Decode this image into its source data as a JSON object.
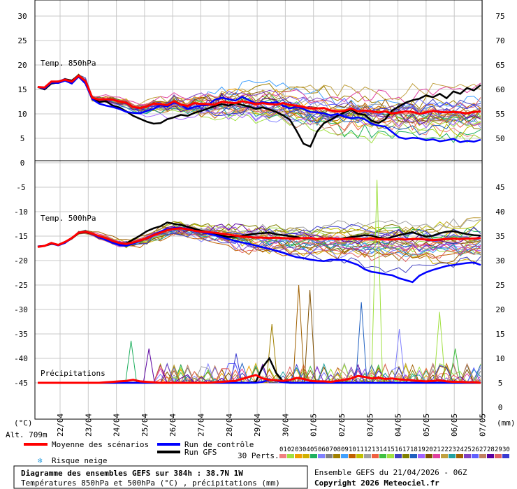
{
  "chart_data": [
    {
      "type": "line",
      "panel": "temp-850",
      "title": "Temp. 850hPa",
      "y_left_ticks": [
        30,
        25,
        20,
        15,
        10,
        5,
        0
      ],
      "y_right_ticks": [
        75,
        70,
        65,
        60,
        55,
        50
      ],
      "ylim": [
        0,
        33
      ],
      "series": [
        {
          "name": "Moyenne des scénarios",
          "color": "#ff0000",
          "values": [
            15.5,
            15.4,
            16.6,
            16.6,
            17.0,
            16.6,
            17.8,
            16.7,
            13.3,
            12.9,
            13.0,
            12.9,
            12.5,
            12.3,
            11.4,
            11.2,
            11.5,
            12.1,
            12.0,
            11.8,
            12.6,
            11.9,
            11.6,
            12.2,
            12.0,
            12.0,
            11.9,
            12.5,
            12.3,
            12.2,
            12.6,
            12.3,
            12.0,
            12.2,
            12.0,
            11.9,
            12.2,
            11.8,
            11.7,
            11.4,
            11.1,
            11.1,
            11.2,
            10.7,
            10.5,
            10.6,
            11.1,
            10.5,
            10.7,
            10.5,
            10.3,
            10.5,
            10.1,
            10.3,
            10.5,
            10.4,
            10.0,
            10.3,
            10.6,
            10.4,
            10.3,
            10.4,
            10.3,
            10.1,
            10.4,
            10.5
          ]
        },
        {
          "name": "Run de contrôle",
          "color": "#0000ff",
          "values": [
            15.5,
            15.2,
            16.4,
            16.3,
            16.8,
            16.2,
            17.6,
            16.2,
            13.0,
            12.1,
            11.7,
            11.4,
            11.0,
            10.4,
            10.2,
            10.1,
            10.6,
            11.0,
            11.8,
            11.5,
            12.3,
            11.9,
            11.0,
            11.4,
            11.7,
            11.8,
            12.9,
            13.3,
            13.0,
            12.7,
            13.5,
            12.8,
            12.1,
            12.4,
            12.2,
            12.4,
            11.7,
            11.1,
            11.5,
            11.0,
            10.4,
            10.3,
            10.1,
            9.7,
            10.0,
            9.4,
            9.1,
            9.3,
            8.9,
            8.0,
            7.6,
            7.4,
            6.3,
            5.2,
            4.9,
            5.1,
            5.0,
            4.6,
            4.8,
            4.4,
            4.6,
            4.9,
            4.2,
            4.5,
            4.3,
            4.7
          ]
        },
        {
          "name": "Run GFS",
          "color": "#000000",
          "values": [
            15.5,
            15.0,
            16.2,
            16.4,
            17.1,
            16.8,
            17.9,
            16.5,
            13.4,
            12.4,
            12.6,
            11.7,
            11.3,
            10.5,
            9.6,
            9.0,
            8.4,
            8.0,
            8.1,
            8.9,
            9.3,
            9.8,
            9.6,
            10.2,
            10.6,
            11.1,
            11.6,
            12.0,
            11.7,
            12.2,
            11.8,
            11.5,
            11.0,
            11.3,
            10.9,
            10.4,
            9.7,
            8.8,
            6.5,
            3.9,
            3.3,
            6.4,
            8.1,
            8.8,
            9.6,
            10.3,
            10.9,
            10.0,
            9.8,
            8.6,
            8.1,
            8.9,
            10.7,
            11.5,
            12.3,
            12.8,
            13.1,
            13.8,
            13.4,
            14.1,
            13.2,
            14.6,
            14.1,
            15.3,
            14.8,
            15.9
          ]
        }
      ]
    },
    {
      "type": "line",
      "panel": "temp-500",
      "title": "Temp. 500hPa",
      "y_left_ticks": [
        -5,
        -10,
        -15,
        -20,
        -25,
        -30,
        -35,
        -40,
        -45
      ],
      "y_right_ticks": [
        45,
        40,
        35,
        30,
        25,
        20,
        15,
        10,
        5,
        0
      ],
      "ylim": [
        -50,
        -2
      ],
      "series": [
        {
          "name": "Moyenne des scénarios",
          "color": "#ff0000",
          "values": [
            -17.2,
            -17.0,
            -16.4,
            -16.8,
            -16.2,
            -15.4,
            -14.3,
            -14.1,
            -14.5,
            -15.0,
            -15.4,
            -16.0,
            -16.4,
            -16.6,
            -16.3,
            -15.9,
            -15.4,
            -14.8,
            -14.3,
            -13.8,
            -13.5,
            -13.4,
            -13.6,
            -13.9,
            -14.1,
            -14.2,
            -14.3,
            -14.5,
            -14.7,
            -14.9,
            -15.1,
            -15.2,
            -15.3,
            -15.3,
            -15.4,
            -15.3,
            -15.4,
            -15.5,
            -15.5,
            -15.4,
            -15.4,
            -15.6,
            -15.5,
            -15.5,
            -15.6,
            -15.6,
            -15.5,
            -15.6,
            -15.6,
            -15.5,
            -15.6,
            -15.7,
            -15.7,
            -15.6,
            -15.7,
            -15.6,
            -15.6,
            -15.7,
            -15.8,
            -15.7,
            -15.6,
            -15.5,
            -15.6,
            -15.5,
            -15.5,
            -15.4
          ]
        },
        {
          "name": "Run de contrôle",
          "color": "#0000ff",
          "values": [
            -17.1,
            -17.0,
            -16.5,
            -16.9,
            -16.4,
            -15.4,
            -14.3,
            -14.0,
            -14.6,
            -15.2,
            -15.8,
            -16.4,
            -16.8,
            -17.0,
            -16.5,
            -16.0,
            -15.4,
            -14.7,
            -14.1,
            -13.6,
            -13.3,
            -13.3,
            -13.5,
            -13.9,
            -14.2,
            -14.5,
            -14.8,
            -15.2,
            -15.6,
            -16.0,
            -16.3,
            -16.6,
            -16.9,
            -17.3,
            -17.6,
            -18.0,
            -18.4,
            -18.9,
            -19.3,
            -19.5,
            -19.8,
            -20.0,
            -20.1,
            -19.8,
            -19.9,
            -19.9,
            -20.4,
            -20.9,
            -21.8,
            -22.3,
            -22.5,
            -22.8,
            -23.0,
            -23.6,
            -24.0,
            -24.4,
            -23.1,
            -22.4,
            -21.9,
            -21.5,
            -21.1,
            -20.9,
            -20.7,
            -20.5,
            -20.4,
            -20.9
          ]
        },
        {
          "name": "Run GFS",
          "color": "#000000",
          "values": [
            -17.1,
            -17.0,
            -16.6,
            -16.8,
            -16.3,
            -15.5,
            -14.4,
            -14.2,
            -14.6,
            -15.2,
            -15.8,
            -16.3,
            -16.7,
            -16.5,
            -15.7,
            -14.9,
            -14.0,
            -13.4,
            -13.0,
            -12.2,
            -12.5,
            -12.7,
            -13.1,
            -13.5,
            -13.9,
            -14.2,
            -14.6,
            -14.9,
            -15.2,
            -15.1,
            -14.9,
            -14.7,
            -14.5,
            -14.4,
            -14.3,
            -14.6,
            -14.8,
            -15.0,
            -15.2,
            -15.5,
            -15.4,
            -15.6,
            -15.5,
            -15.4,
            -15.7,
            -15.4,
            -15.2,
            -15.0,
            -14.8,
            -14.9,
            -15.3,
            -15.6,
            -15.2,
            -14.8,
            -14.5,
            -14.2,
            -14.7,
            -15.1,
            -14.9,
            -14.4,
            -14.1,
            -14.0,
            -14.3,
            -14.6,
            -14.8,
            -14.9
          ]
        }
      ]
    },
    {
      "type": "line",
      "panel": "precipitations",
      "title": "Précipitations",
      "units": "(mm)",
      "ylim": [
        0,
        45
      ],
      "series": [
        {
          "name": "Moyenne des scénarios",
          "color": "#ff0000",
          "values": [
            0.0,
            0.0,
            0.0,
            0.0,
            0.0,
            0.0,
            0.0,
            0.0,
            0.0,
            0.0,
            0.1,
            0.2,
            0.3,
            0.4,
            0.6,
            0.3,
            0.2,
            0.1,
            0.0,
            0.0,
            0.0,
            0.0,
            0.0,
            0.0,
            0.0,
            0.0,
            0.1,
            0.2,
            0.3,
            0.4,
            0.8,
            1.2,
            1.6,
            0.9,
            0.6,
            0.5,
            0.4,
            0.6,
            1.0,
            0.8,
            0.4,
            0.3,
            0.3,
            0.2,
            0.4,
            0.6,
            0.9,
            1.4,
            1.2,
            0.9,
            1.0,
            0.8,
            0.9,
            0.7,
            0.6,
            0.5,
            0.4,
            0.3,
            0.4,
            0.5,
            0.3,
            0.2,
            0.2,
            0.1,
            0.1,
            0.0
          ]
        },
        {
          "name": "Run de contrôle",
          "color": "#0000ff",
          "values": [
            0.0,
            0.0,
            0.0,
            0.0,
            0.0,
            0.0,
            0.0,
            0.0,
            0.0,
            0.0,
            0.0,
            0.0,
            0.0,
            0.0,
            0.0,
            0.0,
            0.0,
            0.0,
            0.0,
            0.0,
            0.0,
            0.0,
            0.0,
            0.0,
            0.0,
            0.0,
            0.0,
            0.0,
            0.0,
            0.0,
            0.0,
            0.0,
            0.0,
            0.2,
            0.6,
            0.4,
            0.1,
            0.0,
            0.0,
            0.0,
            0.0,
            0.0,
            0.0,
            0.0,
            0.0,
            0.0,
            0.0,
            0.0,
            0.0,
            0.0,
            0.0,
            0.0,
            0.0,
            0.0,
            0.0,
            0.0,
            0.0,
            0.0,
            0.0,
            0.0,
            0.0,
            0.0,
            0.0,
            0.0,
            0.0,
            0.0
          ]
        },
        {
          "name": "Run GFS",
          "color": "#000000",
          "values": [
            0.0,
            0.0,
            0.0,
            0.0,
            0.0,
            0.0,
            0.0,
            0.0,
            0.0,
            0.0,
            0.0,
            0.0,
            0.0,
            0.0,
            0.0,
            0.0,
            0.0,
            0.0,
            0.0,
            0.0,
            0.0,
            0.0,
            0.0,
            0.0,
            0.0,
            0.0,
            0.0,
            0.0,
            0.0,
            0.0,
            0.0,
            0.0,
            0.2,
            3.2,
            5.0,
            2.0,
            0.3,
            0.0,
            0.0,
            0.0,
            0.0,
            0.0,
            0.0,
            0.0,
            0.0,
            0.0,
            0.0,
            0.0,
            0.0,
            0.0,
            0.0,
            0.0,
            0.0,
            0.0,
            0.0,
            0.0,
            0.0,
            0.0,
            0.0,
            0.0,
            0.0,
            0.0,
            0.0,
            0.0,
            0.0,
            0.0
          ]
        }
      ],
      "spikes": [
        {
          "x": 0.215,
          "value": 8.6,
          "color": "#20b060"
        },
        {
          "x": 0.255,
          "value": 7.0,
          "color": "#5a00a0"
        },
        {
          "x": 0.45,
          "value": 6.0,
          "color": "#3a3ad0"
        },
        {
          "x": 0.53,
          "value": 12.0,
          "color": "#a08000"
        },
        {
          "x": 0.59,
          "value": 20.0,
          "color": "#a06000"
        },
        {
          "x": 0.615,
          "value": 19.0,
          "color": "#805000"
        },
        {
          "x": 0.73,
          "value": 16.5,
          "color": "#2060c0"
        },
        {
          "x": 0.765,
          "value": 41.5,
          "color": "#a0e040"
        },
        {
          "x": 0.815,
          "value": 11.0,
          "color": "#8080ff"
        },
        {
          "x": 0.905,
          "value": 14.5,
          "color": "#a0e040"
        },
        {
          "x": 0.94,
          "value": 7.0,
          "color": "#40c040"
        }
      ]
    }
  ],
  "x_axis": {
    "dates": [
      "22/04",
      "23/04",
      "24/04",
      "25/04",
      "26/04",
      "27/04",
      "28/04",
      "29/04",
      "30/04",
      "01/05",
      "02/05",
      "03/05",
      "04/05",
      "05/05",
      "06/05",
      "07/05"
    ],
    "left_unit": "(°C)",
    "right_unit": "(mm)",
    "altitude": "Alt. 709m"
  },
  "legend": {
    "mean": "Moyenne des scénarios",
    "control": "Run de contrôle",
    "gfs": "Run GFS",
    "snow_risk": "Risque neige",
    "perts_label": "30 Perts.",
    "perts": [
      "01",
      "02",
      "03",
      "04",
      "05",
      "06",
      "07",
      "08",
      "09",
      "10",
      "11",
      "12",
      "13",
      "14",
      "15",
      "16",
      "17",
      "18",
      "19",
      "20",
      "21",
      "22",
      "23",
      "24",
      "25",
      "26",
      "27",
      "28",
      "29",
      "30"
    ],
    "pert_colors": [
      "#f08080",
      "#a0e040",
      "#f0a000",
      "#d0b000",
      "#20b060",
      "#8080ff",
      "#808080",
      "#a08000",
      "#40a0ff",
      "#c06000",
      "#c0c000",
      "#a0a0a0",
      "#f06040",
      "#40c040",
      "#a0e040",
      "#4040c0",
      "#808000",
      "#2060c0",
      "#a060ff",
      "#805000",
      "#e040a0",
      "#c0a040",
      "#20a0a0",
      "#a06000",
      "#8040c0",
      "#6060ff",
      "#c08060",
      "#5a00a0",
      "#e06060",
      "#3a3ad0"
    ],
    "colors": {
      "mean": "#ff0000",
      "control": "#0000ff",
      "gfs": "#000000",
      "snow": "#30a0e0"
    }
  },
  "footer": {
    "title": "Diagramme des ensembles GEFS sur 384h : 38.7N 1W",
    "subtitle": "Températures 850hPa et 500hPa (°C) , précipitations (mm)",
    "run_info": "Ensemble GEFS du 21/04/2026 - 06Z",
    "copyright": "Copyright 2026 Meteociel.fr"
  }
}
